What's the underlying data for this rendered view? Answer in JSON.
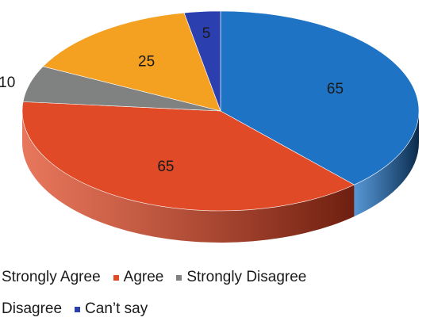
{
  "chart_data": {
    "type": "pie",
    "style": "3d",
    "title": "",
    "categories": [
      "Strongly Agree",
      "Agree",
      "Strongly Disagree",
      "Disagree",
      "Can't say"
    ],
    "slices": [
      {
        "name": "Strongly Agree",
        "value": 65,
        "label": "65",
        "color": "#1f73c4",
        "side": "#0b2a4a"
      },
      {
        "name": "Agree",
        "value": 65,
        "label": "65",
        "color": "#e04a26",
        "side": "#6e1f10"
      },
      {
        "name": "Strongly Disagree",
        "value": 10,
        "label": "10",
        "color": "#7f8280",
        "side": "#3f4140"
      },
      {
        "name": "Disagree",
        "value": 25,
        "label": "25",
        "color": "#f4a020",
        "side": "#8a5a10"
      },
      {
        "name": "Can't say",
        "value": 5,
        "label": "5",
        "color": "#2c3fae",
        "side": "#141e58"
      }
    ],
    "legend": {
      "placement": "bottom",
      "rows": [
        [
          {
            "label": "Strongly Agree",
            "show_marker": false,
            "color": "#1f73c4"
          },
          {
            "label": "Agree",
            "show_marker": true,
            "color": "#e04a26"
          },
          {
            "label": "Strongly Disagree",
            "show_marker": true,
            "color": "#7f8280"
          }
        ],
        [
          {
            "label": "Disagree",
            "show_marker": false,
            "color": "#f4a020"
          },
          {
            "label": "Can’t say",
            "show_marker": true,
            "color": "#2c3fae"
          }
        ]
      ]
    }
  }
}
